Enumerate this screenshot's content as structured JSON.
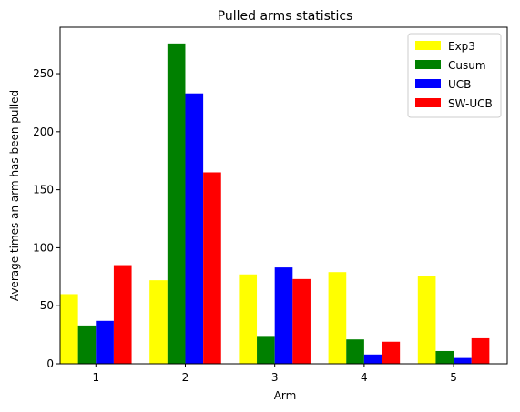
{
  "chart_data": {
    "type": "bar",
    "title": "Pulled arms statistics",
    "xlabel": "Arm",
    "ylabel": "Average times an arm has been pulled",
    "categories": [
      "1",
      "2",
      "3",
      "4",
      "5"
    ],
    "ylim": [
      0,
      290
    ],
    "yticks": [
      0,
      50,
      100,
      150,
      200,
      250
    ],
    "grid": false,
    "legend_position": "top-right",
    "series": [
      {
        "name": "Exp3",
        "color": "#ffff00",
        "values": [
          60,
          72,
          77,
          79,
          76
        ]
      },
      {
        "name": "Cusum",
        "color": "#008000",
        "values": [
          33,
          276,
          24,
          21,
          11
        ]
      },
      {
        "name": "UCB",
        "color": "#0000ff",
        "values": [
          37,
          233,
          83,
          8,
          5
        ]
      },
      {
        "name": "SW-UCB",
        "color": "#ff0000",
        "values": [
          85,
          165,
          73,
          19,
          22
        ]
      }
    ]
  }
}
